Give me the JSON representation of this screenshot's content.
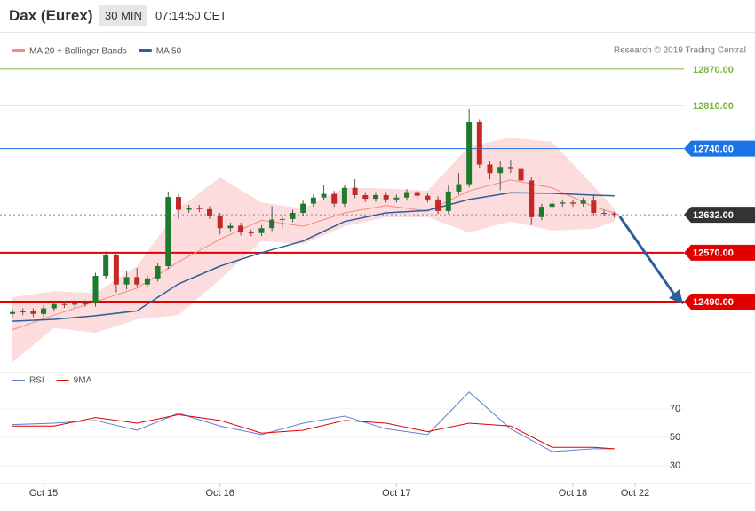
{
  "header": {
    "title": "Dax (Eurex)",
    "interval": "30 MIN",
    "time": "07:14:50 CET"
  },
  "copyright": "Research © 2019 Trading Central",
  "chart_data": [
    {
      "type": "candlestick",
      "xlim": [
        -1.2,
        64.7
      ],
      "ylim": [
        12374,
        12896
      ],
      "up_color": "#1e7b2e",
      "down_color": "#c62828",
      "open": [
        12470,
        12473,
        12474,
        12470,
        12479,
        12486,
        12485,
        12487,
        12487,
        12532,
        12566,
        12518,
        12530,
        12518,
        12528,
        12548,
        12661,
        12640,
        12643,
        12641,
        12630,
        12610,
        12614,
        12603,
        12602,
        12610,
        12624,
        12625,
        12635,
        12650,
        12660,
        12666,
        12650,
        12676,
        12664,
        12658,
        12664,
        12657,
        12660,
        12669,
        12663,
        12657,
        12638,
        12670,
        12682,
        12783,
        12714,
        12700,
        12710,
        12708,
        12688,
        12628,
        12645,
        12650,
        12652,
        12650,
        12655,
        12635,
        12634
      ],
      "high": [
        12478,
        12479,
        12479,
        12484,
        12491,
        12491,
        12492,
        12492,
        12537,
        12572,
        12571,
        12540,
        12545,
        12533,
        12553,
        12670,
        12666,
        12648,
        12648,
        12646,
        12635,
        12619,
        12619,
        12608,
        12615,
        12646,
        12630,
        12640,
        12655,
        12665,
        12680,
        12671,
        12681,
        12690,
        12669,
        12669,
        12669,
        12665,
        12674,
        12674,
        12668,
        12662,
        12680,
        12700,
        12805,
        12788,
        12719,
        12720,
        12722,
        12713,
        12693,
        12650,
        12655,
        12657,
        12657,
        12660,
        12665,
        12640,
        12637
      ],
      "low": [
        12465,
        12468,
        12465,
        12465,
        12474,
        12480,
        12480,
        12482,
        12482,
        12527,
        12505,
        12510,
        12513,
        12513,
        12523,
        12543,
        12625,
        12635,
        12636,
        12625,
        12600,
        12605,
        12598,
        12597,
        12597,
        12605,
        12610,
        12620,
        12630,
        12645,
        12655,
        12645,
        12645,
        12659,
        12653,
        12653,
        12652,
        12652,
        12655,
        12658,
        12652,
        12633,
        12633,
        12665,
        12677,
        12709,
        12690,
        12672,
        12700,
        12683,
        12615,
        12623,
        12640,
        12645,
        12645,
        12645,
        12630,
        12629,
        12627
      ],
      "close": [
        12473,
        12474,
        12470,
        12479,
        12486,
        12485,
        12487,
        12487,
        12532,
        12566,
        12518,
        12530,
        12518,
        12528,
        12548,
        12661,
        12640,
        12643,
        12641,
        12630,
        12610,
        12614,
        12603,
        12602,
        12610,
        12624,
        12625,
        12635,
        12650,
        12660,
        12666,
        12650,
        12676,
        12664,
        12658,
        12664,
        12657,
        12660,
        12669,
        12663,
        12657,
        12638,
        12670,
        12682,
        12783,
        12714,
        12700,
        12710,
        12708,
        12688,
        12628,
        12645,
        12650,
        12652,
        12650,
        12655,
        12635,
        12634,
        12632
      ],
      "overlay_x": [
        0,
        4,
        8,
        12,
        16,
        20,
        24,
        28,
        32,
        36,
        40,
        44,
        48,
        52,
        56,
        58
      ],
      "series": [
        {
          "name": "MA 20 + Bollinger Bands",
          "color": "#f28b82",
          "band_color": "#fbd0d0",
          "values": [
            12444,
            12468,
            12490,
            12512,
            12555,
            12592,
            12623,
            12613,
            12635,
            12647,
            12638,
            12671,
            12689,
            12676,
            12645,
            12635
          ],
          "upper": [
            12497,
            12507,
            12504,
            12548,
            12642,
            12693,
            12652,
            12642,
            12676,
            12675,
            12671,
            12744,
            12758,
            12751,
            12679,
            12642
          ],
          "lower": [
            12391,
            12447,
            12439,
            12461,
            12468,
            12526,
            12589,
            12584,
            12613,
            12628,
            12628,
            12603,
            12621,
            12606,
            12609,
            12621
          ]
        },
        {
          "name": "MA 50",
          "color": "#2d5f9a",
          "values": [
            12458,
            12461,
            12467,
            12475,
            12519,
            12548,
            12570,
            12589,
            12621,
            12635,
            12639,
            12657,
            12668,
            12667,
            12664,
            12663
          ]
        }
      ],
      "levels": [
        {
          "value": 12870,
          "label": "12870.00",
          "color": "#7cb342",
          "style": "plain"
        },
        {
          "value": 12810,
          "label": "12810.00",
          "color": "#7cb342",
          "style": "plain"
        },
        {
          "value": 12740,
          "label": "12740.00",
          "color": "#1a73e8",
          "style": "boxed"
        },
        {
          "value": 12632,
          "label": "12632.00",
          "color": "#333333",
          "style": "dotted"
        },
        {
          "value": 12570,
          "label": "12570.00",
          "color": "#e00000",
          "style": "thick"
        },
        {
          "value": 12490,
          "label": "12490.00",
          "color": "#e00000",
          "style": "thick"
        }
      ]
    },
    {
      "type": "line",
      "xlim": [
        -1.2,
        64.7
      ],
      "ylim": [
        17.5,
        89.4
      ],
      "xticks": [
        {
          "value": 3,
          "label": "Oct 15"
        },
        {
          "value": 20,
          "label": "Oct 16"
        },
        {
          "value": 37,
          "label": "Oct 17"
        },
        {
          "value": 54,
          "label": "Oct 18"
        },
        {
          "value": 60,
          "label": "Oct 22"
        }
      ],
      "yticks": [
        30,
        50,
        70
      ],
      "x": [
        0,
        4,
        8,
        12,
        16,
        20,
        24,
        28,
        32,
        36,
        40,
        44,
        48,
        52,
        56,
        58
      ],
      "series": [
        {
          "name": "RSI",
          "color": "#5b7fd6",
          "values": [
            59,
            60,
            62,
            55,
            67,
            58,
            52,
            60,
            65,
            56,
            52,
            82,
            56,
            40,
            42,
            42
          ]
        },
        {
          "name": "9MA",
          "color": "#e00000",
          "values": [
            58,
            58,
            64,
            60,
            66,
            62,
            53,
            55,
            62,
            60,
            54,
            60,
            58,
            43,
            43,
            42
          ]
        }
      ]
    }
  ]
}
